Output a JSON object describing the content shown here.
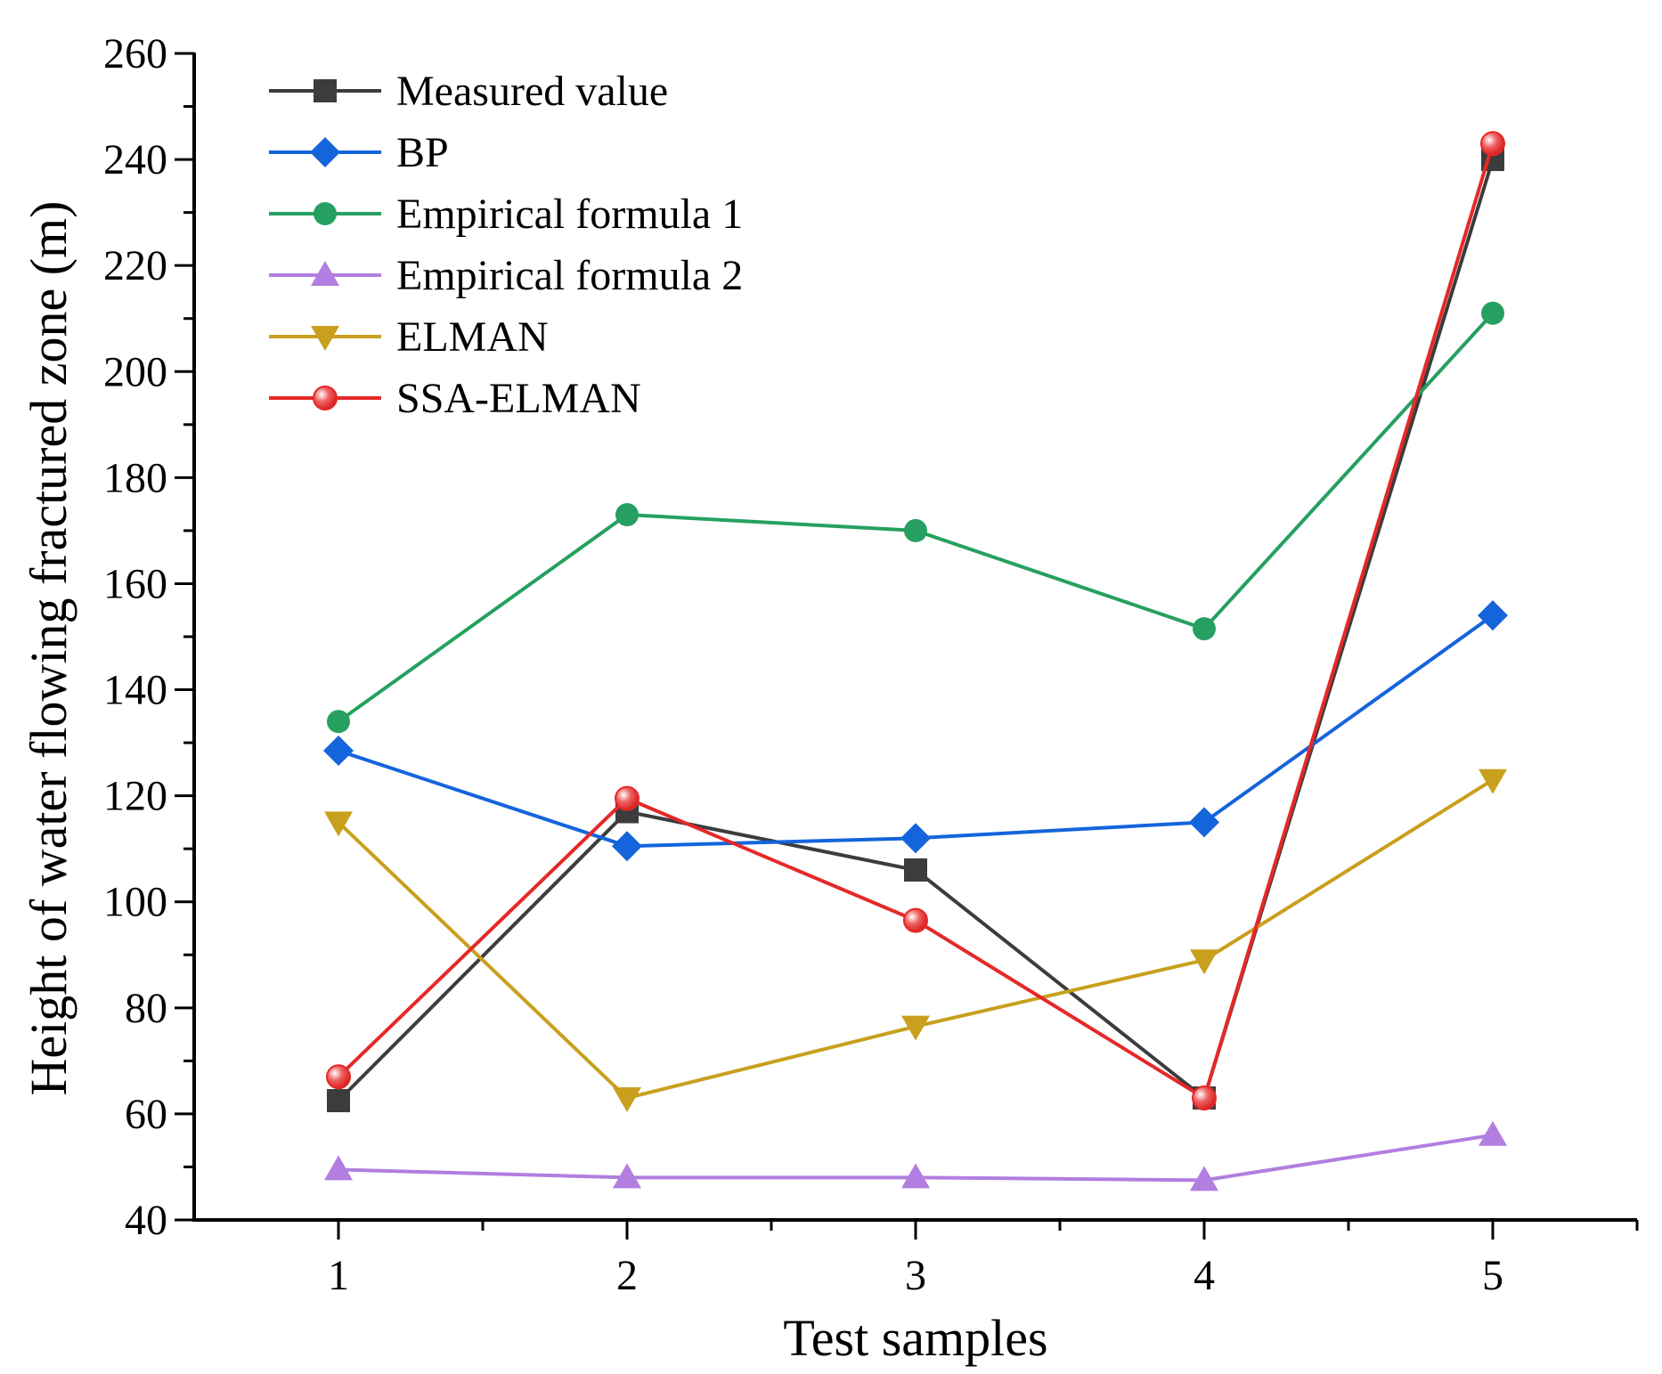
{
  "chart_data": {
    "type": "line",
    "title": "",
    "xlabel": "Test samples",
    "ylabel": "Height of water flowing fractured zone (m)",
    "categories": [
      "1",
      "2",
      "3",
      "4",
      "5"
    ],
    "x": [
      1,
      2,
      3,
      4,
      5
    ],
    "xlim": [
      0.5,
      5.5
    ],
    "ylim": [
      40,
      260
    ],
    "yticks": [
      "40",
      "60",
      "80",
      "100",
      "120",
      "140",
      "160",
      "180",
      "200",
      "220",
      "240",
      "260"
    ],
    "grid": false,
    "legend_position": "top-left",
    "series": [
      {
        "name": "Measured value",
        "color": "#3c3c3c",
        "marker": "square",
        "values": [
          62.5,
          117,
          106,
          63,
          240
        ]
      },
      {
        "name": "BP",
        "color": "#1464dc",
        "marker": "diamond",
        "values": [
          128.5,
          110.5,
          112,
          115,
          154
        ]
      },
      {
        "name": "Empirical formula 1",
        "color": "#26a060",
        "marker": "circle",
        "values": [
          134,
          173,
          170,
          151.5,
          211
        ]
      },
      {
        "name": "Empirical formula 2",
        "color": "#b27ee0",
        "marker": "triangle-up",
        "values": [
          49.5,
          48,
          48,
          47.5,
          56
        ]
      },
      {
        "name": "ELMAN",
        "color": "#c8a01e",
        "marker": "triangle-down",
        "values": [
          115,
          63,
          76.5,
          89,
          123
        ]
      },
      {
        "name": "SSA-ELMAN",
        "color": "#e62828",
        "marker": "sphere",
        "values": [
          67,
          119.5,
          96.5,
          63,
          243
        ]
      }
    ]
  }
}
